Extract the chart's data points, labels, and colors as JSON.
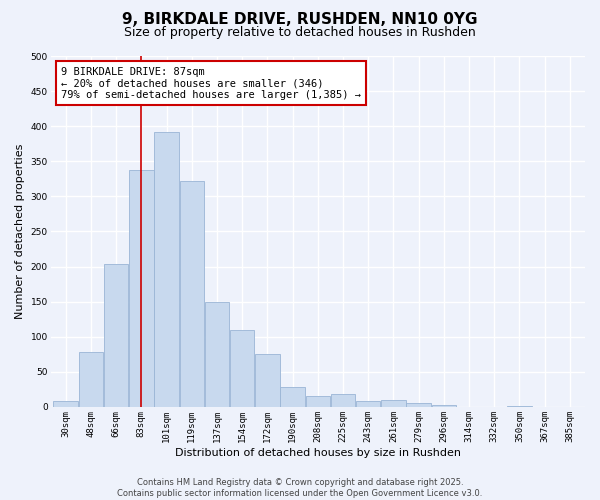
{
  "title": "9, BIRKDALE DRIVE, RUSHDEN, NN10 0YG",
  "subtitle": "Size of property relative to detached houses in Rushden",
  "xlabel": "Distribution of detached houses by size in Rushden",
  "ylabel": "Number of detached properties",
  "categories": [
    "30sqm",
    "48sqm",
    "66sqm",
    "83sqm",
    "101sqm",
    "119sqm",
    "137sqm",
    "154sqm",
    "172sqm",
    "190sqm",
    "208sqm",
    "225sqm",
    "243sqm",
    "261sqm",
    "279sqm",
    "296sqm",
    "314sqm",
    "332sqm",
    "350sqm",
    "367sqm",
    "385sqm"
  ],
  "values": [
    8,
    78,
    203,
    338,
    392,
    322,
    150,
    110,
    75,
    29,
    15,
    18,
    8,
    10,
    5,
    3,
    0,
    0,
    2,
    0,
    0
  ],
  "bar_color": "#c8d9ee",
  "bar_edge_color": "#9ab5d5",
  "vline_x_index": 3,
  "vline_color": "#cc0000",
  "annotation_line1": "9 BIRKDALE DRIVE: 87sqm",
  "annotation_line2": "← 20% of detached houses are smaller (346)",
  "annotation_line3": "79% of semi-detached houses are larger (1,385) →",
  "annotation_box_color": "#ffffff",
  "annotation_box_edge": "#cc0000",
  "ylim": [
    0,
    500
  ],
  "yticks": [
    0,
    50,
    100,
    150,
    200,
    250,
    300,
    350,
    400,
    450,
    500
  ],
  "footer_line1": "Contains HM Land Registry data © Crown copyright and database right 2025.",
  "footer_line2": "Contains public sector information licensed under the Open Government Licence v3.0.",
  "bg_color": "#eef2fb",
  "grid_color": "#ffffff",
  "title_fontsize": 11,
  "subtitle_fontsize": 9,
  "axis_label_fontsize": 8,
  "tick_fontsize": 6.5,
  "annotation_fontsize": 7.5,
  "footer_fontsize": 6
}
